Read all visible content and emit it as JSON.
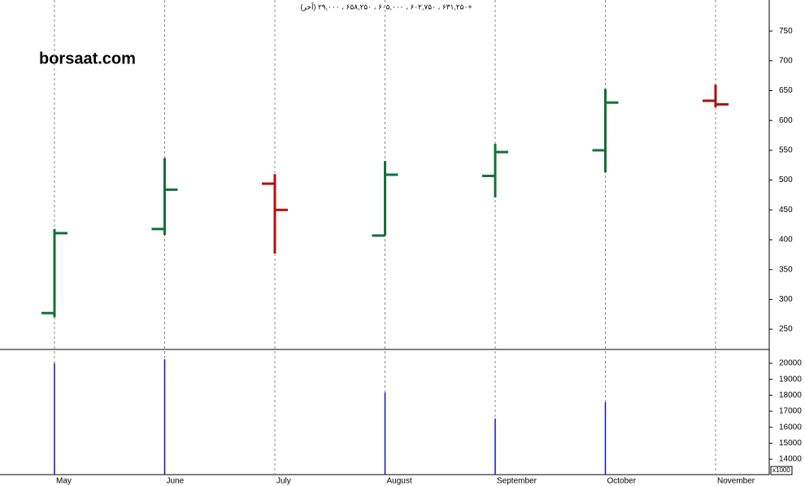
{
  "chart_data": [
    {
      "type": "ohlc",
      "title": "(آخر) ۶۳۱,۲۵۰ ، ۶۰۲,۷۵۰ ، ۶۰۵,۰۰۰ ، ۶۵۸,۲۵۰ ، ۲۹,۰۰۰+",
      "annotation": "borsaat.com",
      "categories": [
        "May",
        "June",
        "July",
        "August",
        "September",
        "October",
        "November"
      ],
      "open": [
        277,
        418,
        494,
        407,
        507,
        550,
        633
      ],
      "high": [
        418,
        537,
        510,
        532,
        561,
        653,
        660
      ],
      "low": [
        270,
        408,
        377,
        407,
        471,
        513,
        622
      ],
      "close": [
        411,
        484,
        450,
        509,
        547,
        630,
        627
      ],
      "up_color": "#13703a",
      "down_color": "#b01010",
      "ylim": [
        216,
        802
      ],
      "yticks": [
        250,
        300,
        350,
        400,
        450,
        500,
        550,
        600,
        650,
        700,
        750
      ],
      "grid": true
    },
    {
      "type": "bar",
      "values": [
        20000,
        20250,
        null,
        18170,
        16540,
        17560,
        null
      ],
      "color": "#1010c0",
      "unit_label": "x1000",
      "ylim": [
        13034,
        20864
      ],
      "yticks": [
        14000,
        15000,
        16000,
        17000,
        18000,
        19000,
        20000
      ]
    }
  ]
}
